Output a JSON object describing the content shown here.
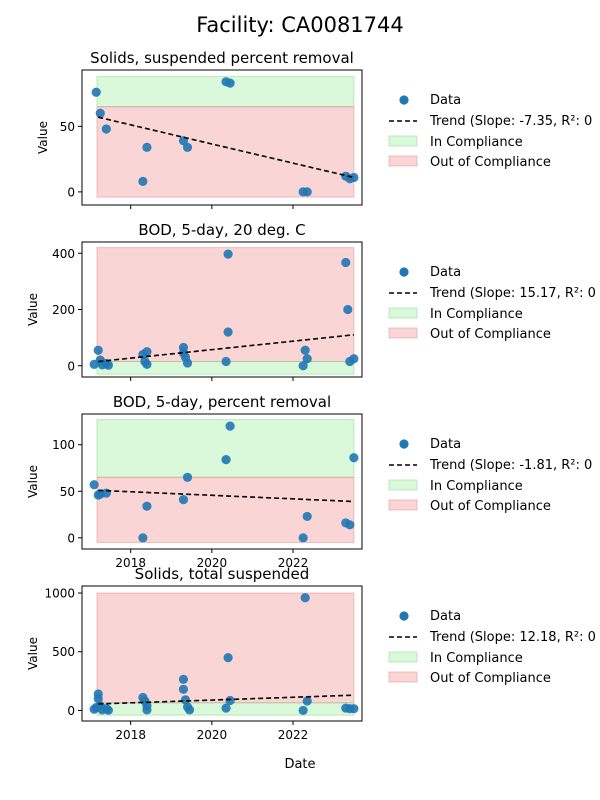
{
  "figure": {
    "title": "Facility: CA0081744",
    "xlabel": "Date",
    "colors": {
      "data": "#1f77b4",
      "trend": "#000000",
      "in_compliance": "#90ee90",
      "out_of_compliance": "#f08080"
    }
  },
  "chart_data": [
    {
      "type": "scatter",
      "title": "Solids, suspended percent removal",
      "ylabel": "Value",
      "xlim": [
        2016.8,
        2023.7
      ],
      "ylim": [
        -10,
        93
      ],
      "xticks": [],
      "yticks": [
        0,
        50
      ],
      "compliance_threshold": 65,
      "band_top": 88,
      "band_bottom": -4,
      "trend": {
        "x": [
          2017.2,
          2023.5
        ],
        "y": [
          57,
          11
        ]
      },
      "legend": [
        "Data",
        "Trend (Slope: -7.35, R²: 0",
        "In Compliance",
        "Out of Compliance"
      ],
      "points": [
        {
          "x": 2017.15,
          "y": 76
        },
        {
          "x": 2017.25,
          "y": 60
        },
        {
          "x": 2017.4,
          "y": 48
        },
        {
          "x": 2018.3,
          "y": 8
        },
        {
          "x": 2018.4,
          "y": 34
        },
        {
          "x": 2019.3,
          "y": 39
        },
        {
          "x": 2019.4,
          "y": 34
        },
        {
          "x": 2020.35,
          "y": 84
        },
        {
          "x": 2020.45,
          "y": 83
        },
        {
          "x": 2022.25,
          "y": 0
        },
        {
          "x": 2022.35,
          "y": 0
        },
        {
          "x": 2023.3,
          "y": 12
        },
        {
          "x": 2023.4,
          "y": 10
        },
        {
          "x": 2023.5,
          "y": 11
        }
      ]
    },
    {
      "type": "scatter",
      "title": "BOD, 5-day, 20 deg. C",
      "ylabel": "Value",
      "xlim": [
        2016.8,
        2023.7
      ],
      "ylim": [
        -40,
        440
      ],
      "xticks": [],
      "yticks": [
        0,
        200,
        400
      ],
      "compliance_threshold": 15,
      "band_top": 420,
      "band_bottom": -30,
      "trend": {
        "x": [
          2017.2,
          2023.5
        ],
        "y": [
          15,
          110
        ]
      },
      "legend": [
        "Data",
        "Trend (Slope: 15.17, R²: 0",
        "In Compliance",
        "Out of Compliance"
      ],
      "points": [
        {
          "x": 2017.1,
          "y": 5
        },
        {
          "x": 2017.2,
          "y": 55
        },
        {
          "x": 2017.25,
          "y": 20
        },
        {
          "x": 2017.3,
          "y": 3
        },
        {
          "x": 2017.4,
          "y": 8
        },
        {
          "x": 2017.45,
          "y": 2
        },
        {
          "x": 2018.3,
          "y": 40
        },
        {
          "x": 2018.35,
          "y": 15
        },
        {
          "x": 2018.4,
          "y": 50
        },
        {
          "x": 2018.4,
          "y": 5
        },
        {
          "x": 2019.3,
          "y": 65
        },
        {
          "x": 2019.3,
          "y": 45
        },
        {
          "x": 2019.35,
          "y": 30
        },
        {
          "x": 2019.4,
          "y": 10
        },
        {
          "x": 2020.35,
          "y": 15
        },
        {
          "x": 2020.4,
          "y": 120
        },
        {
          "x": 2020.4,
          "y": 397
        },
        {
          "x": 2022.25,
          "y": 0
        },
        {
          "x": 2022.3,
          "y": 55
        },
        {
          "x": 2022.35,
          "y": 25
        },
        {
          "x": 2023.3,
          "y": 367
        },
        {
          "x": 2023.35,
          "y": 200
        },
        {
          "x": 2023.4,
          "y": 15
        },
        {
          "x": 2023.5,
          "y": 25
        }
      ]
    },
    {
      "type": "scatter",
      "title": "BOD, 5-day, percent removal",
      "ylabel": "Value",
      "xlim": [
        2016.8,
        2023.7
      ],
      "ylim": [
        -12,
        133
      ],
      "xticks": [
        2018,
        2020,
        2022
      ],
      "yticks": [
        0,
        50,
        100
      ],
      "compliance_threshold": 65,
      "band_top": 127,
      "band_bottom": -5,
      "trend": {
        "x": [
          2017.2,
          2023.5
        ],
        "y": [
          51,
          39
        ]
      },
      "legend": [
        "Data",
        "Trend (Slope: -1.81, R²: 0",
        "In Compliance",
        "Out of Compliance"
      ],
      "points": [
        {
          "x": 2017.1,
          "y": 57
        },
        {
          "x": 2017.2,
          "y": 46
        },
        {
          "x": 2017.25,
          "y": 47
        },
        {
          "x": 2017.4,
          "y": 48
        },
        {
          "x": 2018.3,
          "y": 0
        },
        {
          "x": 2018.4,
          "y": 34
        },
        {
          "x": 2019.3,
          "y": 41
        },
        {
          "x": 2019.4,
          "y": 65
        },
        {
          "x": 2020.35,
          "y": 84
        },
        {
          "x": 2020.45,
          "y": 120
        },
        {
          "x": 2022.25,
          "y": 0
        },
        {
          "x": 2022.35,
          "y": 23
        },
        {
          "x": 2023.3,
          "y": 16
        },
        {
          "x": 2023.4,
          "y": 14
        },
        {
          "x": 2023.5,
          "y": 86
        }
      ]
    },
    {
      "type": "scatter",
      "title": "Solids, total suspended",
      "ylabel": "Value",
      "xlim": [
        2016.8,
        2023.7
      ],
      "ylim": [
        -90,
        1060
      ],
      "xticks": [
        2018,
        2020,
        2022
      ],
      "yticks": [
        0,
        500,
        1000
      ],
      "compliance_threshold": 65,
      "band_top": 1000,
      "band_bottom": -40,
      "trend": {
        "x": [
          2017.2,
          2023.5
        ],
        "y": [
          55,
          130
        ]
      },
      "legend": [
        "Data",
        "Trend (Slope: 12.18, R²: 0",
        "In Compliance",
        "Out of Compliance"
      ],
      "points": [
        {
          "x": 2017.1,
          "y": 10
        },
        {
          "x": 2017.15,
          "y": 25
        },
        {
          "x": 2017.2,
          "y": 140
        },
        {
          "x": 2017.2,
          "y": 100
        },
        {
          "x": 2017.25,
          "y": 40
        },
        {
          "x": 2017.3,
          "y": 5
        },
        {
          "x": 2017.4,
          "y": 15
        },
        {
          "x": 2017.45,
          "y": 2
        },
        {
          "x": 2018.3,
          "y": 110
        },
        {
          "x": 2018.35,
          "y": 80
        },
        {
          "x": 2018.4,
          "y": 40
        },
        {
          "x": 2018.4,
          "y": 5
        },
        {
          "x": 2019.3,
          "y": 265
        },
        {
          "x": 2019.3,
          "y": 180
        },
        {
          "x": 2019.35,
          "y": 90
        },
        {
          "x": 2019.4,
          "y": 30
        },
        {
          "x": 2019.45,
          "y": 5
        },
        {
          "x": 2020.35,
          "y": 20
        },
        {
          "x": 2020.4,
          "y": 450
        },
        {
          "x": 2020.45,
          "y": 85
        },
        {
          "x": 2022.25,
          "y": 0
        },
        {
          "x": 2022.3,
          "y": 960
        },
        {
          "x": 2022.35,
          "y": 80
        },
        {
          "x": 2023.3,
          "y": 20
        },
        {
          "x": 2023.4,
          "y": 15
        },
        {
          "x": 2023.5,
          "y": 15
        }
      ]
    }
  ]
}
